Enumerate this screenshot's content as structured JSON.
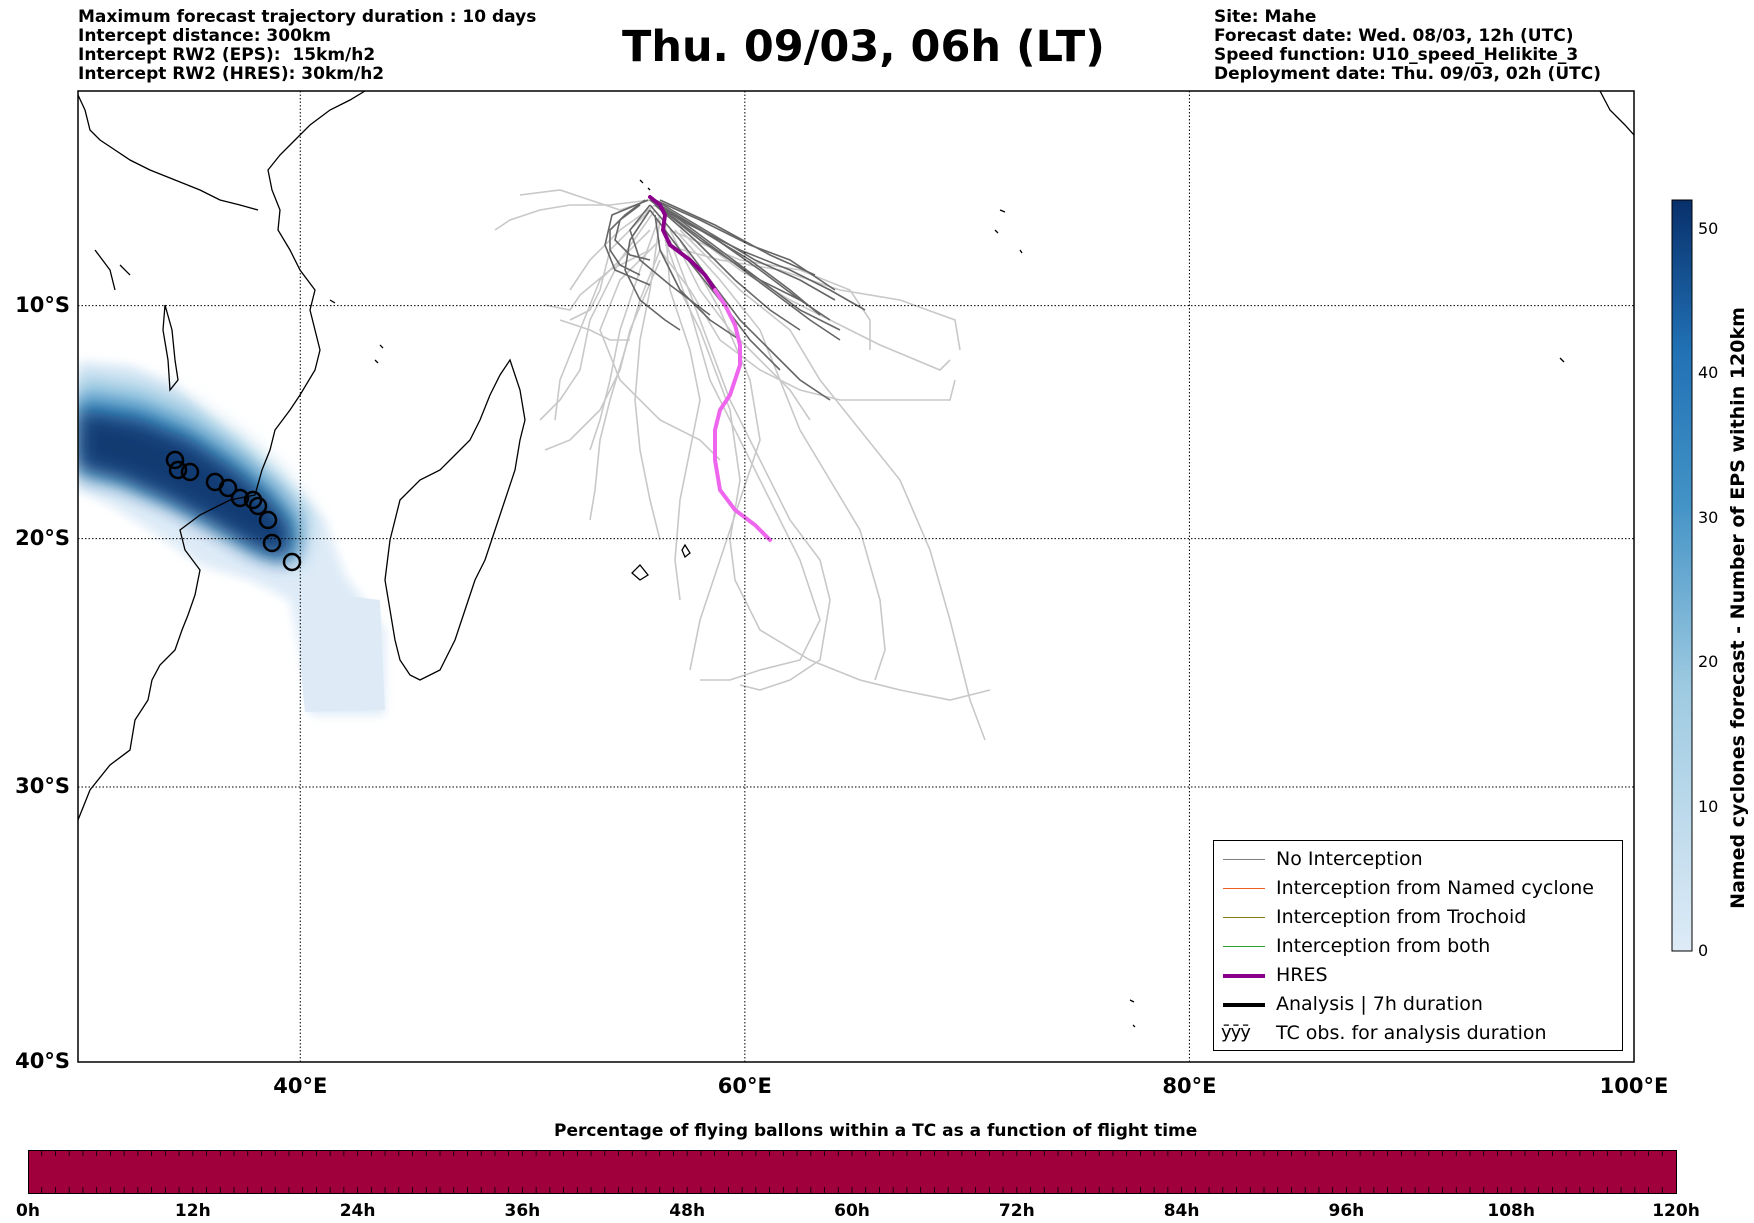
{
  "header_left": [
    "Maximum forecast trajectory duration : 10 days",
    "Intercept distance: 300km",
    "Intercept RW2 (EPS):  15km/h2",
    "Intercept RW2 (HRES): 30km/h2"
  ],
  "header_right": [
    "Site: Mahe",
    "Forecast date: Wed. 08/03, 12h (UTC)",
    "Speed function: U10_speed_Helikite_3",
    "Deployment date: Thu. 09/03, 02h (UTC)"
  ],
  "title": "Thu. 09/03, 06h (LT)",
  "map": {
    "lon_range": [
      30,
      100
    ],
    "lat_range": [
      -40,
      -0.5
    ],
    "lat_ticks": [
      {
        "lat": -10,
        "label": "10°S"
      },
      {
        "lat": -20,
        "label": "20°S"
      },
      {
        "lat": -30,
        "label": "30°S"
      },
      {
        "lat": -40,
        "label": "40°S"
      }
    ],
    "lon_ticks": [
      {
        "lon": 40,
        "label": "40°E"
      },
      {
        "lon": 60,
        "label": "60°E"
      },
      {
        "lon": 80,
        "label": "80°E"
      },
      {
        "lon": 100,
        "label": "100°E"
      }
    ],
    "grid": true,
    "colors": {
      "coast": "#000000",
      "no_interception_dark": "#666666",
      "no_interception_light": "#c8c8c8",
      "hres_early": "#8b008b",
      "hres_late": "#ee66ee",
      "track_band_dark": "#08306b",
      "track_band_mid": "#2171b5",
      "track_band_light": "#c6dbef"
    }
  },
  "legend": {
    "items": [
      {
        "label": "No Interception",
        "color": "#808080",
        "width": 1.2,
        "kind": "line"
      },
      {
        "label": "Interception from Named cyclone",
        "color": "#e8601c",
        "width": 1.2,
        "kind": "line"
      },
      {
        "label": "Interception from Trochoid",
        "color": "#8b7d16",
        "width": 1.2,
        "kind": "line"
      },
      {
        "label": "Interception from both",
        "color": "#2ca02c",
        "width": 1.2,
        "kind": "line"
      },
      {
        "label": "HRES",
        "color": "#8b008b",
        "width": 4,
        "kind": "line"
      },
      {
        "label": "Analysis | 7h duration",
        "color": "#000000",
        "width": 4,
        "kind": "line"
      },
      {
        "label": "TC obs. for analysis duration",
        "symbol": "ӯӯӯ",
        "kind": "symbol"
      }
    ]
  },
  "colorbar_right": {
    "label": "Named cyclones forecast - Number of EPS within 120km",
    "min": 0,
    "max": 52,
    "ticks": [
      "0",
      "10",
      "20",
      "30",
      "40",
      "50"
    ],
    "colors": [
      "#deebf7",
      "#08306b"
    ]
  },
  "colorbar_bottom": {
    "title": "Percentage of flying ballons within a TC as a function of flight time",
    "color": "#a0003c",
    "fill_fraction": 1.0,
    "ticks": [
      "0h",
      "12h",
      "24h",
      "36h",
      "48h",
      "60h",
      "72h",
      "84h",
      "96h",
      "108h",
      "120h"
    ]
  }
}
